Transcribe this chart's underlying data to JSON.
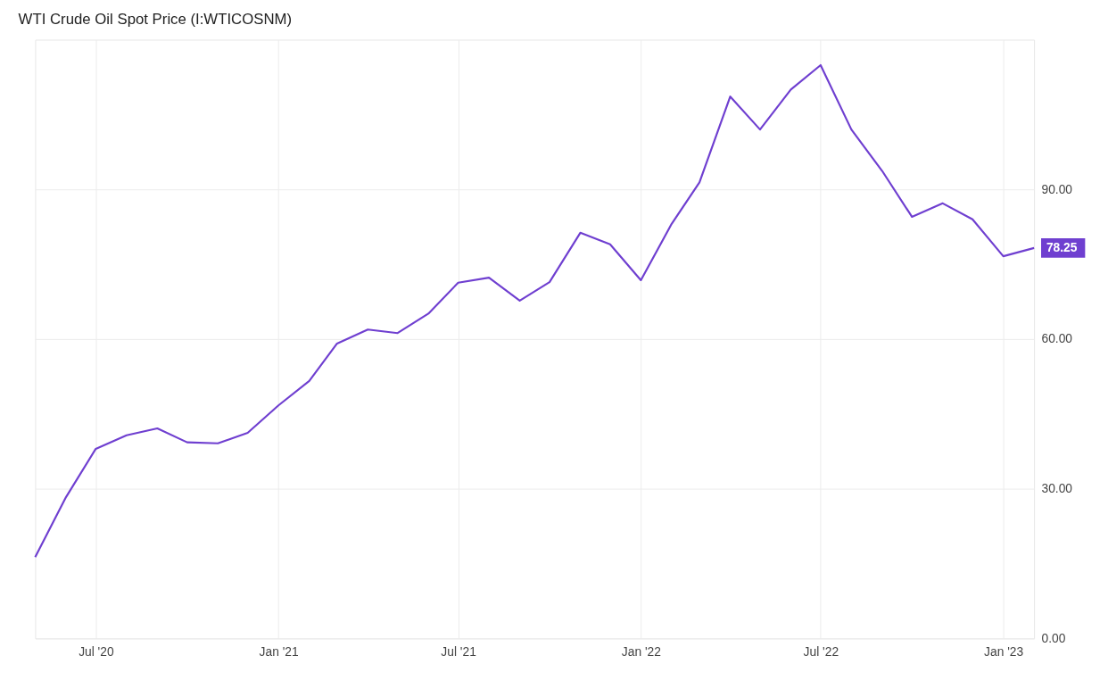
{
  "chart_data": {
    "type": "line",
    "title": "WTI Crude Oil Spot Price (I:WTICOSNM)",
    "x": [
      "2020-05-01",
      "2020-06-01",
      "2020-07-01",
      "2020-08-01",
      "2020-09-01",
      "2020-10-01",
      "2020-11-01",
      "2020-12-01",
      "2021-01-01",
      "2021-02-01",
      "2021-03-01",
      "2021-04-01",
      "2021-05-01",
      "2021-06-01",
      "2021-07-01",
      "2021-08-01",
      "2021-09-01",
      "2021-10-01",
      "2021-11-01",
      "2021-12-01",
      "2022-01-01",
      "2022-02-01",
      "2022-03-01",
      "2022-04-01",
      "2022-05-01",
      "2022-06-01",
      "2022-07-01",
      "2022-08-01",
      "2022-09-01",
      "2022-10-01",
      "2022-11-01",
      "2022-12-01",
      "2023-01-01",
      "2023-02-01"
    ],
    "series": [
      {
        "color": "#6f3fd0",
        "values": [
          16.3,
          28.3,
          38.0,
          40.7,
          42.1,
          39.3,
          39.1,
          41.2,
          46.7,
          51.6,
          59.1,
          61.9,
          61.2,
          65.1,
          71.3,
          72.3,
          67.7,
          71.4,
          81.3,
          79.0,
          71.8,
          83.1,
          91.4,
          108.6,
          102.0,
          110.0,
          114.9,
          102.0,
          93.7,
          84.5,
          87.2,
          84.0,
          76.6,
          78.25
        ]
      }
    ],
    "xlim": [
      "2020-05-01",
      "2023-02-01"
    ],
    "xticks": [
      {
        "value": "2020-07-01",
        "label": "Jul '20"
      },
      {
        "value": "2021-01-01",
        "label": "Jan '21"
      },
      {
        "value": "2021-07-01",
        "label": "Jul '21"
      },
      {
        "value": "2022-01-01",
        "label": "Jan '22"
      },
      {
        "value": "2022-07-01",
        "label": "Jul '22"
      },
      {
        "value": "2023-01-01",
        "label": "Jan '23"
      }
    ],
    "ylim": [
      0,
      120
    ],
    "yticks": [
      {
        "value": 0,
        "label": "0.00"
      },
      {
        "value": 30,
        "label": "30.00"
      },
      {
        "value": 60,
        "label": "60.00"
      },
      {
        "value": 90,
        "label": "90.00"
      }
    ],
    "annotations": [
      {
        "text": "78.25",
        "x": "2023-02-01",
        "y": 78.25
      }
    ],
    "grid": true,
    "marker": "none",
    "line_style": "solid"
  }
}
